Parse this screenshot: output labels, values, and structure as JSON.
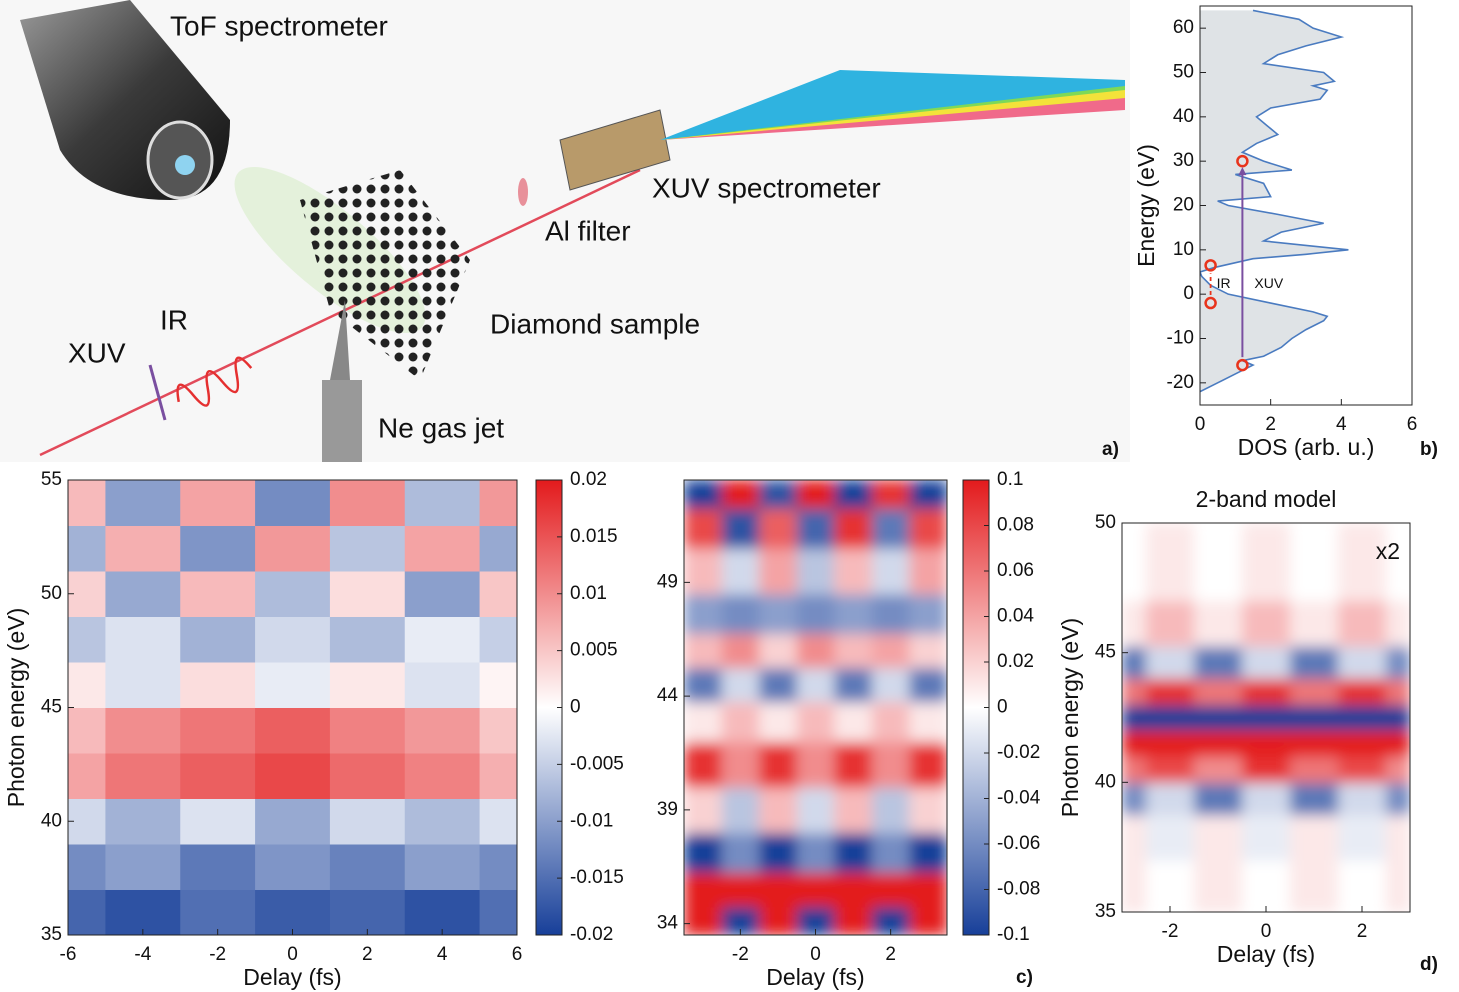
{
  "illustration": {
    "labels": [
      "ToF spectrometer",
      "XUV spectrometer",
      "Al filter",
      "Diamond sample",
      "XUV",
      "IR",
      "Ne gas jet"
    ]
  },
  "panel_labels": [
    "a)",
    "b)",
    "c)",
    "d)"
  ],
  "chart_data": [
    {
      "type": "line",
      "xlabel": "DOS (arb. u.)",
      "ylabel": "Energy (eV)",
      "color": "#4a7bc0",
      "fill": "#dfe3e6",
      "xlim": [
        0,
        6
      ],
      "xticks": [
        0,
        2,
        4,
        6
      ],
      "ylim": [
        -25,
        65
      ],
      "yticks": [
        -20,
        -10,
        0,
        10,
        20,
        30,
        40,
        50,
        60
      ],
      "y": [
        -22,
        -20,
        -18,
        -16,
        -15,
        -14,
        -12,
        -10,
        -8,
        -6,
        -5,
        -4,
        -2,
        0,
        2,
        4,
        5,
        6,
        8,
        9,
        10,
        11,
        12,
        14,
        16,
        18,
        20,
        21,
        22,
        25,
        27,
        28,
        30,
        32,
        34,
        36,
        38,
        40,
        42,
        44,
        46,
        47,
        48,
        50,
        52,
        54,
        56,
        58,
        60,
        62,
        64
      ],
      "x": [
        0,
        0.5,
        1.0,
        1.5,
        1.2,
        1.8,
        2.3,
        2.6,
        3.0,
        3.5,
        3.6,
        3.2,
        2.0,
        0.8,
        0.3,
        0.05,
        0,
        0.4,
        1.5,
        3.0,
        4.2,
        3.0,
        1.8,
        2.3,
        3.5,
        2.2,
        0.8,
        0.5,
        2.0,
        1.8,
        1.0,
        2.6,
        1.8,
        1.2,
        1.6,
        2.2,
        1.9,
        1.6,
        2.0,
        3.4,
        3.6,
        3.2,
        3.8,
        3.5,
        1.8,
        2.2,
        3.0,
        4.0,
        3.2,
        2.8,
        1.5
      ],
      "markers": {
        "x": [
          0.3,
          0.3,
          1.2,
          1.2
        ],
        "y": [
          6.5,
          -2,
          30,
          -16
        ],
        "color": "#e8341c"
      },
      "annotations": [
        "IR",
        "XUV"
      ]
    },
    {
      "type": "heatmap",
      "xlabel": "Delay (fs)",
      "ylabel": "Photon energy (eV)",
      "xlim": [
        -6,
        6
      ],
      "xticks": [
        -6,
        -4,
        -2,
        0,
        2,
        4,
        6
      ],
      "ylim": [
        35,
        55
      ],
      "yticks": [
        35,
        40,
        45,
        50,
        55
      ],
      "clim": [
        -0.02,
        0.02
      ],
      "cticks": [
        -0.02,
        -0.015,
        -0.01,
        -0.005,
        0,
        0.005,
        0.01,
        0.015,
        0.02
      ],
      "x": [
        -6,
        -4,
        -2,
        0,
        2,
        4,
        6
      ],
      "y": [
        36,
        38,
        40,
        42,
        44,
        46,
        48,
        50,
        52,
        54
      ],
      "z": [
        [
          -0.016,
          -0.018,
          -0.015,
          -0.017,
          -0.016,
          -0.018,
          -0.015
        ],
        [
          -0.012,
          -0.01,
          -0.014,
          -0.011,
          -0.013,
          -0.01,
          -0.012
        ],
        [
          -0.004,
          -0.008,
          -0.003,
          -0.009,
          -0.004,
          -0.007,
          -0.003
        ],
        [
          0.008,
          0.012,
          0.014,
          0.016,
          0.013,
          0.011,
          0.007
        ],
        [
          0.006,
          0.01,
          0.012,
          0.014,
          0.011,
          0.009,
          0.005
        ],
        [
          0.002,
          -0.003,
          0.003,
          -0.002,
          0.002,
          -0.003,
          0.001
        ],
        [
          -0.006,
          -0.003,
          -0.008,
          -0.004,
          -0.007,
          -0.002,
          -0.005
        ],
        [
          0.004,
          -0.009,
          0.006,
          -0.007,
          0.003,
          -0.01,
          0.005
        ],
        [
          -0.008,
          0.007,
          -0.011,
          0.009,
          -0.006,
          0.008,
          -0.009
        ],
        [
          0.006,
          -0.01,
          0.008,
          -0.012,
          0.01,
          -0.007,
          0.009
        ]
      ]
    },
    {
      "type": "heatmap",
      "xlabel": "Delay (fs)",
      "smooth": true,
      "xlim": [
        -3.5,
        3.5
      ],
      "xticks": [
        -2,
        0,
        2
      ],
      "ylim": [
        33.5,
        53.5
      ],
      "yticks": [
        34,
        39,
        44,
        49
      ],
      "clim": [
        -0.1,
        0.1
      ],
      "cticks": [
        -0.1,
        -0.08,
        -0.06,
        -0.04,
        -0.02,
        0,
        0.02,
        0.04,
        0.06,
        0.08,
        0.1
      ],
      "x": [
        -3,
        -2,
        -1,
        0,
        1,
        2,
        3
      ],
      "y": [
        34,
        35.5,
        37,
        39,
        41,
        43,
        44.5,
        46,
        47.5,
        49.5,
        51.5,
        53
      ],
      "z": [
        [
          0.1,
          -0.1,
          0.1,
          -0.1,
          0.1,
          -0.1,
          0.1
        ],
        [
          0.1,
          0.1,
          0.1,
          0.1,
          0.1,
          0.1,
          0.1
        ],
        [
          -0.1,
          -0.06,
          -0.1,
          -0.06,
          -0.1,
          -0.06,
          -0.1
        ],
        [
          0.02,
          -0.03,
          0.03,
          -0.02,
          0.03,
          -0.03,
          0.02
        ],
        [
          0.09,
          0.05,
          0.09,
          0.05,
          0.09,
          0.05,
          0.09
        ],
        [
          0.01,
          0.03,
          0.01,
          0.03,
          0.01,
          0.03,
          0.01
        ],
        [
          -0.07,
          -0.02,
          -0.07,
          -0.02,
          -0.07,
          -0.02,
          -0.07
        ],
        [
          0.03,
          0.05,
          0.02,
          0.05,
          0.03,
          0.04,
          0.02
        ],
        [
          -0.05,
          -0.06,
          -0.05,
          -0.06,
          -0.05,
          -0.06,
          -0.05
        ],
        [
          0.03,
          -0.02,
          0.04,
          -0.03,
          0.03,
          -0.02,
          0.04
        ],
        [
          0.08,
          -0.09,
          0.07,
          -0.08,
          0.09,
          -0.07,
          0.08
        ],
        [
          -0.1,
          0.1,
          -0.09,
          0.1,
          -0.1,
          0.09,
          -0.1
        ]
      ]
    },
    {
      "type": "heatmap",
      "title": "2-band model",
      "annotation": "x2",
      "xlabel": "Delay (fs)",
      "ylabel": "Photon energy (eV)",
      "smooth": true,
      "xlim": [
        -3,
        3
      ],
      "xticks": [
        -2,
        0,
        2
      ],
      "ylim": [
        35,
        50
      ],
      "yticks": [
        35,
        40,
        45,
        50
      ],
      "clim": [
        -0.1,
        0.1
      ],
      "x": [
        -3,
        -2,
        -1,
        0,
        1,
        2,
        3
      ],
      "y": [
        36,
        38,
        39.5,
        40.5,
        41.5,
        42.5,
        43.5,
        44.5,
        46,
        48
      ],
      "z": [
        [
          0.01,
          0,
          0.01,
          0,
          0.01,
          0,
          0.01
        ],
        [
          0.01,
          -0.01,
          0.01,
          -0.01,
          0.01,
          -0.01,
          0.01
        ],
        [
          -0.06,
          -0.02,
          -0.07,
          -0.02,
          -0.07,
          -0.02,
          -0.06
        ],
        [
          0.06,
          0.08,
          0.05,
          0.09,
          0.06,
          0.08,
          0.05
        ],
        [
          0.1,
          0.1,
          0.1,
          0.1,
          0.1,
          0.1,
          0.1
        ],
        [
          -0.1,
          -0.1,
          -0.1,
          -0.1,
          -0.1,
          -0.1,
          -0.1
        ],
        [
          0.06,
          0.09,
          0.06,
          0.09,
          0.06,
          0.09,
          0.06
        ],
        [
          -0.07,
          -0.02,
          -0.07,
          -0.02,
          -0.07,
          -0.02,
          -0.06
        ],
        [
          0.01,
          0.03,
          0.01,
          0.03,
          0.01,
          0.03,
          0.01
        ],
        [
          0,
          0.01,
          0,
          0.01,
          0,
          0.01,
          0
        ]
      ]
    }
  ]
}
